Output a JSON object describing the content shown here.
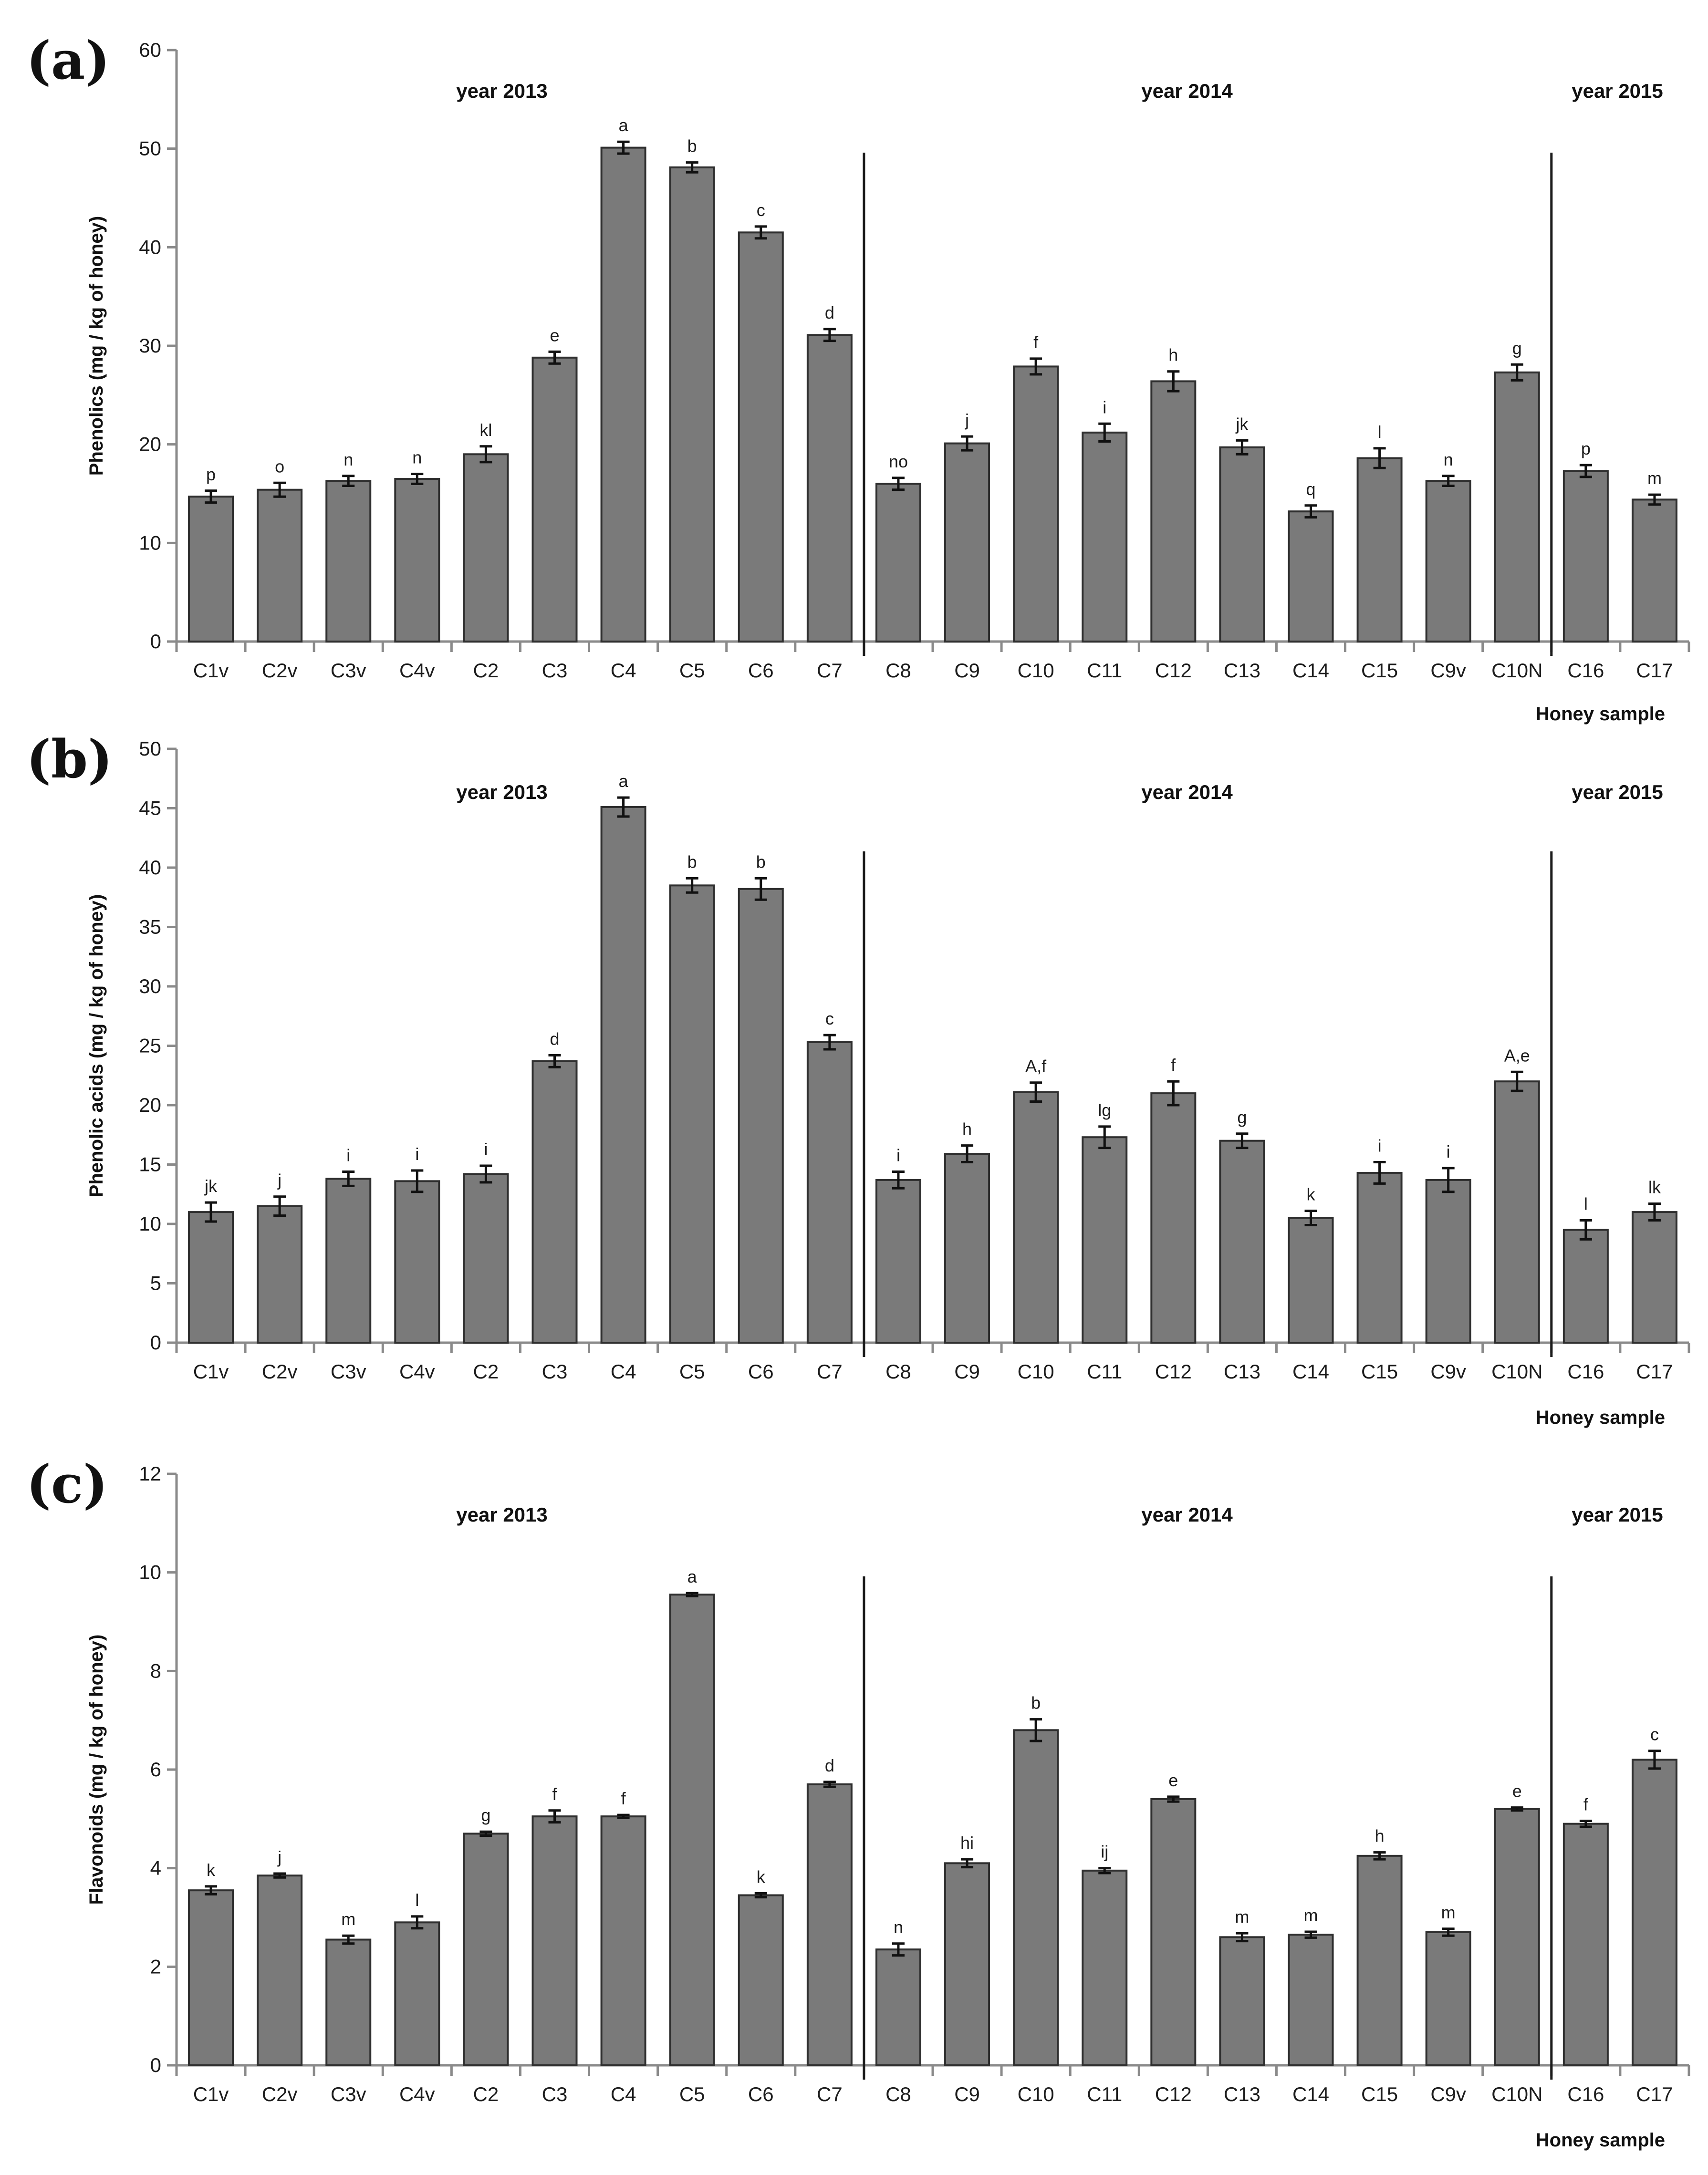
{
  "chart_data": [
    {
      "type": "bar",
      "panel_label": "(a)",
      "title": "",
      "xlabel": "Honey sample",
      "ylabel": "Phenolics (mg / kg of honey)",
      "ylim": [
        0,
        60
      ],
      "yticks": [
        0,
        10,
        20,
        30,
        40,
        50,
        60
      ],
      "grid": false,
      "categories": [
        "C1v",
        "C2v",
        "C3v",
        "C4v",
        "C2",
        "C3",
        "C4",
        "C5",
        "C6",
        "C7",
        "C8",
        "C9",
        "C10",
        "C11",
        "C12",
        "C13",
        "C14",
        "C15",
        "C9v",
        "C10N",
        "C16",
        "C17"
      ],
      "values": [
        14.7,
        15.4,
        16.3,
        16.5,
        19.0,
        28.8,
        50.1,
        48.1,
        41.5,
        31.1,
        16.0,
        20.1,
        27.9,
        21.2,
        26.4,
        19.7,
        13.2,
        18.6,
        16.3,
        27.3,
        17.3,
        14.4
      ],
      "errors": [
        0.6,
        0.7,
        0.5,
        0.5,
        0.8,
        0.6,
        0.6,
        0.5,
        0.6,
        0.6,
        0.6,
        0.7,
        0.8,
        0.9,
        1.0,
        0.7,
        0.6,
        1.0,
        0.5,
        0.8,
        0.6,
        0.5
      ],
      "significance_letters": [
        "p",
        "o",
        "n",
        "n",
        "kl",
        "e",
        "a",
        "b",
        "c",
        "d",
        "no",
        "j",
        "f",
        "i",
        "h",
        "jk",
        "q",
        "l",
        "n",
        "g",
        "p",
        "m"
      ],
      "year_groups": [
        {
          "label": "year 2013",
          "from": 0,
          "to": 9
        },
        {
          "label": "year 2014",
          "from": 10,
          "to": 19
        },
        {
          "label": "year 2015",
          "from": 20,
          "to": 21
        }
      ],
      "dividers_after_index": [
        9,
        19
      ]
    },
    {
      "type": "bar",
      "panel_label": "(b)",
      "title": "",
      "xlabel": "Honey sample",
      "ylabel": "Phenolic acids (mg / kg of honey)",
      "ylim": [
        0,
        50
      ],
      "yticks": [
        0,
        5,
        10,
        15,
        20,
        25,
        30,
        35,
        40,
        45,
        50
      ],
      "grid": false,
      "categories": [
        "C1v",
        "C2v",
        "C3v",
        "C4v",
        "C2",
        "C3",
        "C4",
        "C5",
        "C6",
        "C7",
        "C8",
        "C9",
        "C10",
        "C11",
        "C12",
        "C13",
        "C14",
        "C15",
        "C9v",
        "C10N",
        "C16",
        "C17"
      ],
      "values": [
        11.0,
        11.5,
        13.8,
        13.6,
        14.2,
        23.7,
        45.1,
        38.5,
        38.2,
        25.3,
        13.7,
        15.9,
        21.1,
        17.3,
        21.0,
        17.0,
        10.5,
        14.3,
        13.7,
        22.0,
        9.5,
        11.0
      ],
      "errors": [
        0.8,
        0.8,
        0.6,
        0.9,
        0.7,
        0.5,
        0.8,
        0.6,
        0.9,
        0.6,
        0.7,
        0.7,
        0.8,
        0.9,
        1.0,
        0.6,
        0.6,
        0.9,
        1.0,
        0.8,
        0.8,
        0.7
      ],
      "significance_letters": [
        "jk",
        "j",
        "i",
        "i",
        "i",
        "d",
        "a",
        "b",
        "b",
        "c",
        "i",
        "h",
        "A,f",
        "lg",
        "f",
        "g",
        "k",
        "i",
        "i",
        "A,e",
        "l",
        "lk"
      ],
      "year_groups": [
        {
          "label": "year 2013",
          "from": 0,
          "to": 9
        },
        {
          "label": "year 2014",
          "from": 10,
          "to": 19
        },
        {
          "label": "year 2015",
          "from": 20,
          "to": 21
        }
      ],
      "dividers_after_index": [
        9,
        19
      ]
    },
    {
      "type": "bar",
      "panel_label": "(c)",
      "title": "",
      "xlabel": "Honey sample",
      "ylabel": "Flavonoids (mg / kg of honey)",
      "ylim": [
        0,
        12
      ],
      "yticks": [
        0,
        2,
        4,
        6,
        8,
        10,
        12
      ],
      "grid": false,
      "categories": [
        "C1v",
        "C2v",
        "C3v",
        "C4v",
        "C2",
        "C3",
        "C4",
        "C5",
        "C6",
        "C7",
        "C8",
        "C9",
        "C10",
        "C11",
        "C12",
        "C13",
        "C14",
        "C15",
        "C9v",
        "C10N",
        "C16",
        "C17"
      ],
      "values": [
        3.55,
        3.85,
        2.55,
        2.9,
        4.7,
        5.05,
        5.05,
        9.55,
        3.45,
        5.7,
        2.35,
        4.1,
        6.8,
        3.95,
        5.4,
        2.6,
        2.65,
        4.25,
        2.7,
        5.2,
        4.9,
        6.2
      ],
      "errors": [
        0.08,
        0.04,
        0.08,
        0.12,
        0.04,
        0.12,
        0.03,
        0.03,
        0.04,
        0.05,
        0.12,
        0.08,
        0.22,
        0.05,
        0.05,
        0.08,
        0.06,
        0.07,
        0.07,
        0.03,
        0.06,
        0.18
      ],
      "significance_letters": [
        "k",
        "j",
        "m",
        "l",
        "g",
        "f",
        "f",
        "a",
        "k",
        "d",
        "n",
        "hi",
        "b",
        "ij",
        "e",
        "m",
        "m",
        "h",
        "m",
        "e",
        "f",
        "c"
      ],
      "year_groups": [
        {
          "label": "year 2013",
          "from": 0,
          "to": 9
        },
        {
          "label": "year 2014",
          "from": 10,
          "to": 19
        },
        {
          "label": "year 2015",
          "from": 20,
          "to": 21
        }
      ],
      "dividers_after_index": [
        9,
        19
      ]
    }
  ]
}
